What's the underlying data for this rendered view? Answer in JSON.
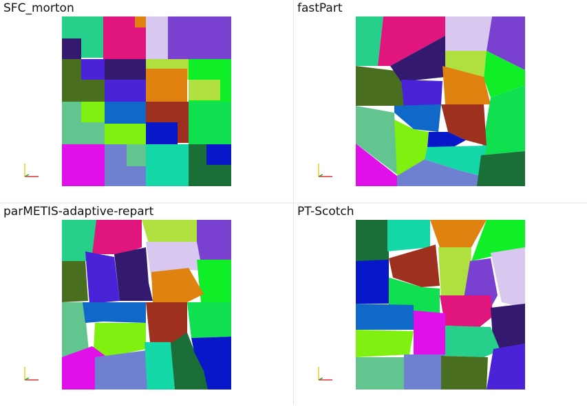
{
  "panels": [
    {
      "id": "sfc-morton",
      "title": "SFC_morton"
    },
    {
      "id": "fastpart",
      "title": "fastPart"
    },
    {
      "id": "parmetis",
      "title": "parMETIS-adaptive-repart"
    },
    {
      "id": "pt-scotch",
      "title": "PT-Scotch"
    }
  ],
  "axis_triad_colors": {
    "x": "#e03030",
    "y": "#e8d020",
    "z": "#30a030"
  }
}
